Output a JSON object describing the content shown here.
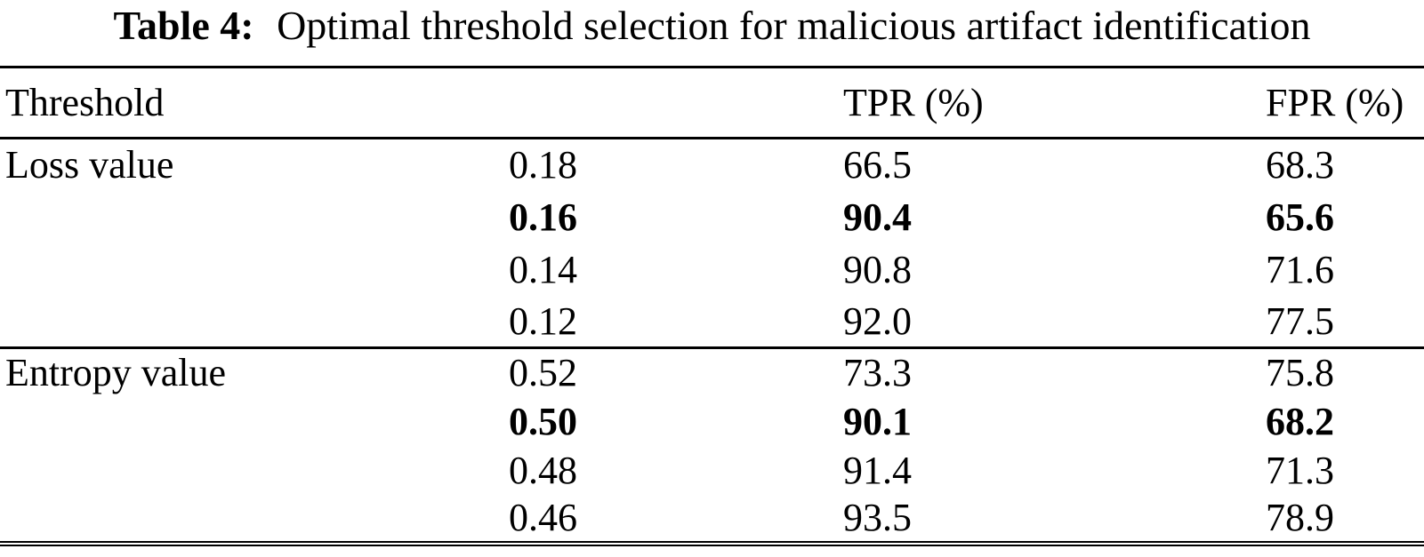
{
  "caption": {
    "label": "Table 4:",
    "text": "Optimal threshold selection for malicious artifact identification"
  },
  "table": {
    "columns": {
      "threshold": "Threshold",
      "value": "",
      "tpr": "TPR (%)",
      "fpr": "FPR (%)"
    },
    "sections": [
      {
        "name": "Loss value",
        "rows": [
          {
            "threshold": "0.18",
            "tpr": "66.5",
            "fpr": "68.3",
            "bold": false
          },
          {
            "threshold": "0.16",
            "tpr": "90.4",
            "fpr": "65.6",
            "bold": true
          },
          {
            "threshold": "0.14",
            "tpr": "90.8",
            "fpr": "71.6",
            "bold": false
          },
          {
            "threshold": "0.12",
            "tpr": "92.0",
            "fpr": "77.5",
            "bold": false
          }
        ]
      },
      {
        "name": "Entropy value",
        "rows": [
          {
            "threshold": "0.52",
            "tpr": "73.3",
            "fpr": "75.8",
            "bold": false
          },
          {
            "threshold": "0.50",
            "tpr": "90.1",
            "fpr": "68.2",
            "bold": true
          },
          {
            "threshold": "0.48",
            "tpr": "91.4",
            "fpr": "71.3",
            "bold": false
          },
          {
            "threshold": "0.46",
            "tpr": "93.5",
            "fpr": "78.9",
            "bold": false
          }
        ]
      }
    ]
  }
}
